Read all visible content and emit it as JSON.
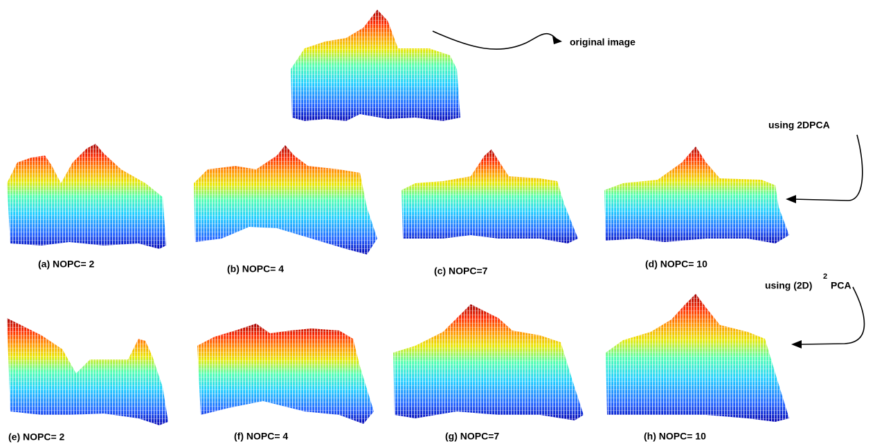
{
  "figure": {
    "original_label": "original image",
    "label_2dpca": "using 2DPCA",
    "label_2d2pca": {
      "base": "using (2D)",
      "superscript": "2",
      "suffix": "PCA"
    },
    "captions": [
      "(a) NOPC= 2",
      "(b) NOPC= 4",
      "(c)  NOPC=7",
      "(d)  NOPC= 10",
      "(e)  NOPC= 2",
      "(f)  NOPC= 4",
      "(g)  NOPC=7",
      "(h)  NOPC= 10"
    ]
  }
}
